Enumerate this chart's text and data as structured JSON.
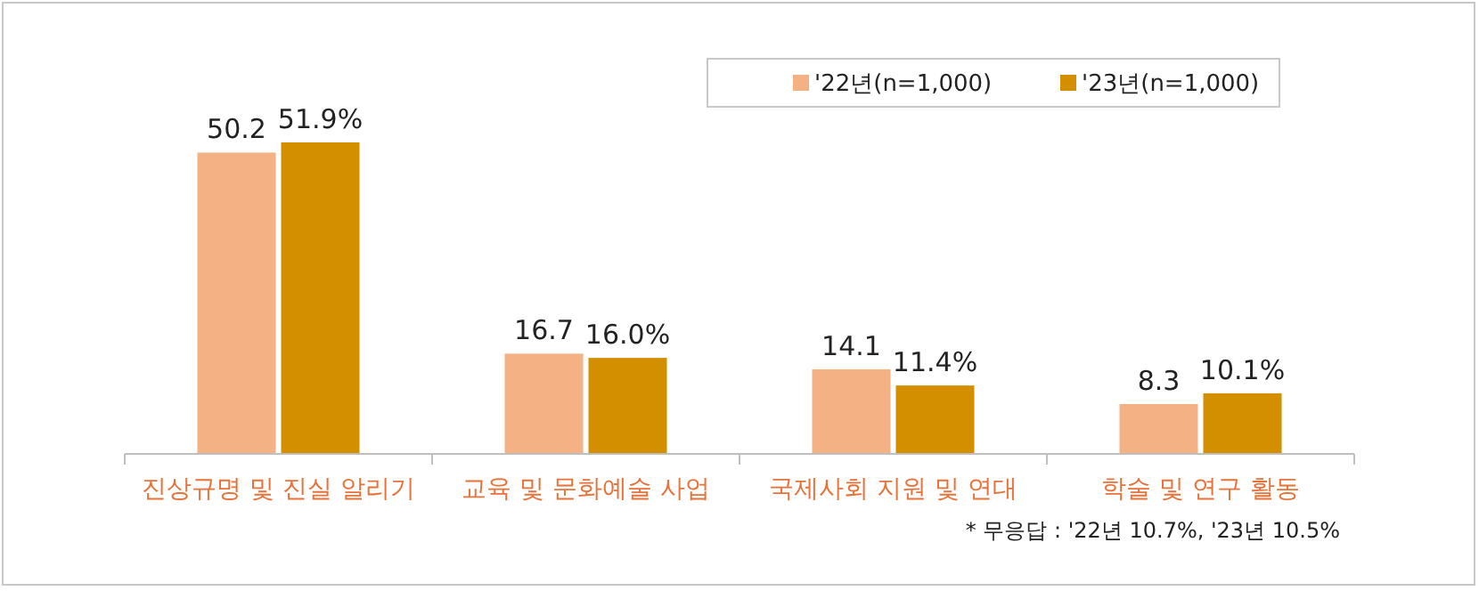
{
  "chart_data": {
    "type": "bar",
    "categories": [
      "진상규명 및 진실 알리기",
      "교육 및 문화예술 사업",
      "국제사회 지원 및 연대",
      "학술 및 연구 활동"
    ],
    "series": [
      {
        "name": "'22년(n=1,000)",
        "color": "#f4b183",
        "values": [
          50.2,
          16.7,
          14.1,
          8.3
        ],
        "value_labels": [
          "50.2",
          "16.7",
          "14.1",
          "8.3"
        ]
      },
      {
        "name": "'23년(n=1,000)",
        "color": "#d48f00",
        "values": [
          51.9,
          16.0,
          11.4,
          10.1
        ],
        "value_labels": [
          "51.9%",
          "16.0%",
          "11.4%",
          "10.1%"
        ]
      }
    ],
    "legend": "top right",
    "annotations": [
      "*  무응답 : '22년 10.7%, '23년 10.5%"
    ]
  }
}
